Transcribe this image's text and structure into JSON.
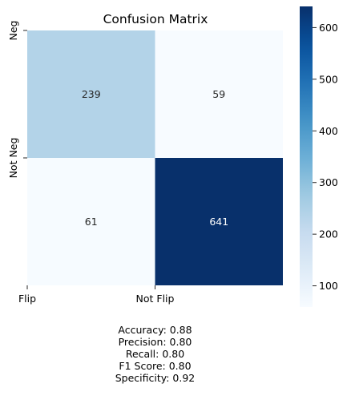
{
  "chart_data": {
    "type": "heatmap",
    "title": "Confusion Matrix",
    "x_tick_labels": [
      "Flip",
      "Not Flip"
    ],
    "y_tick_labels": [
      "Neg",
      "Not Neg"
    ],
    "matrix": [
      [
        239,
        59
      ],
      [
        61,
        641
      ]
    ],
    "colorbar": {
      "colormap": "Blues",
      "range": [
        59,
        641
      ],
      "ticks": [
        100,
        200,
        300,
        400,
        500,
        600
      ]
    }
  },
  "metrics": [
    "Accuracy: 0.88",
    "Precision: 0.80",
    "Recall: 0.80",
    "F1 Score: 0.80",
    "Specificity: 0.92"
  ]
}
